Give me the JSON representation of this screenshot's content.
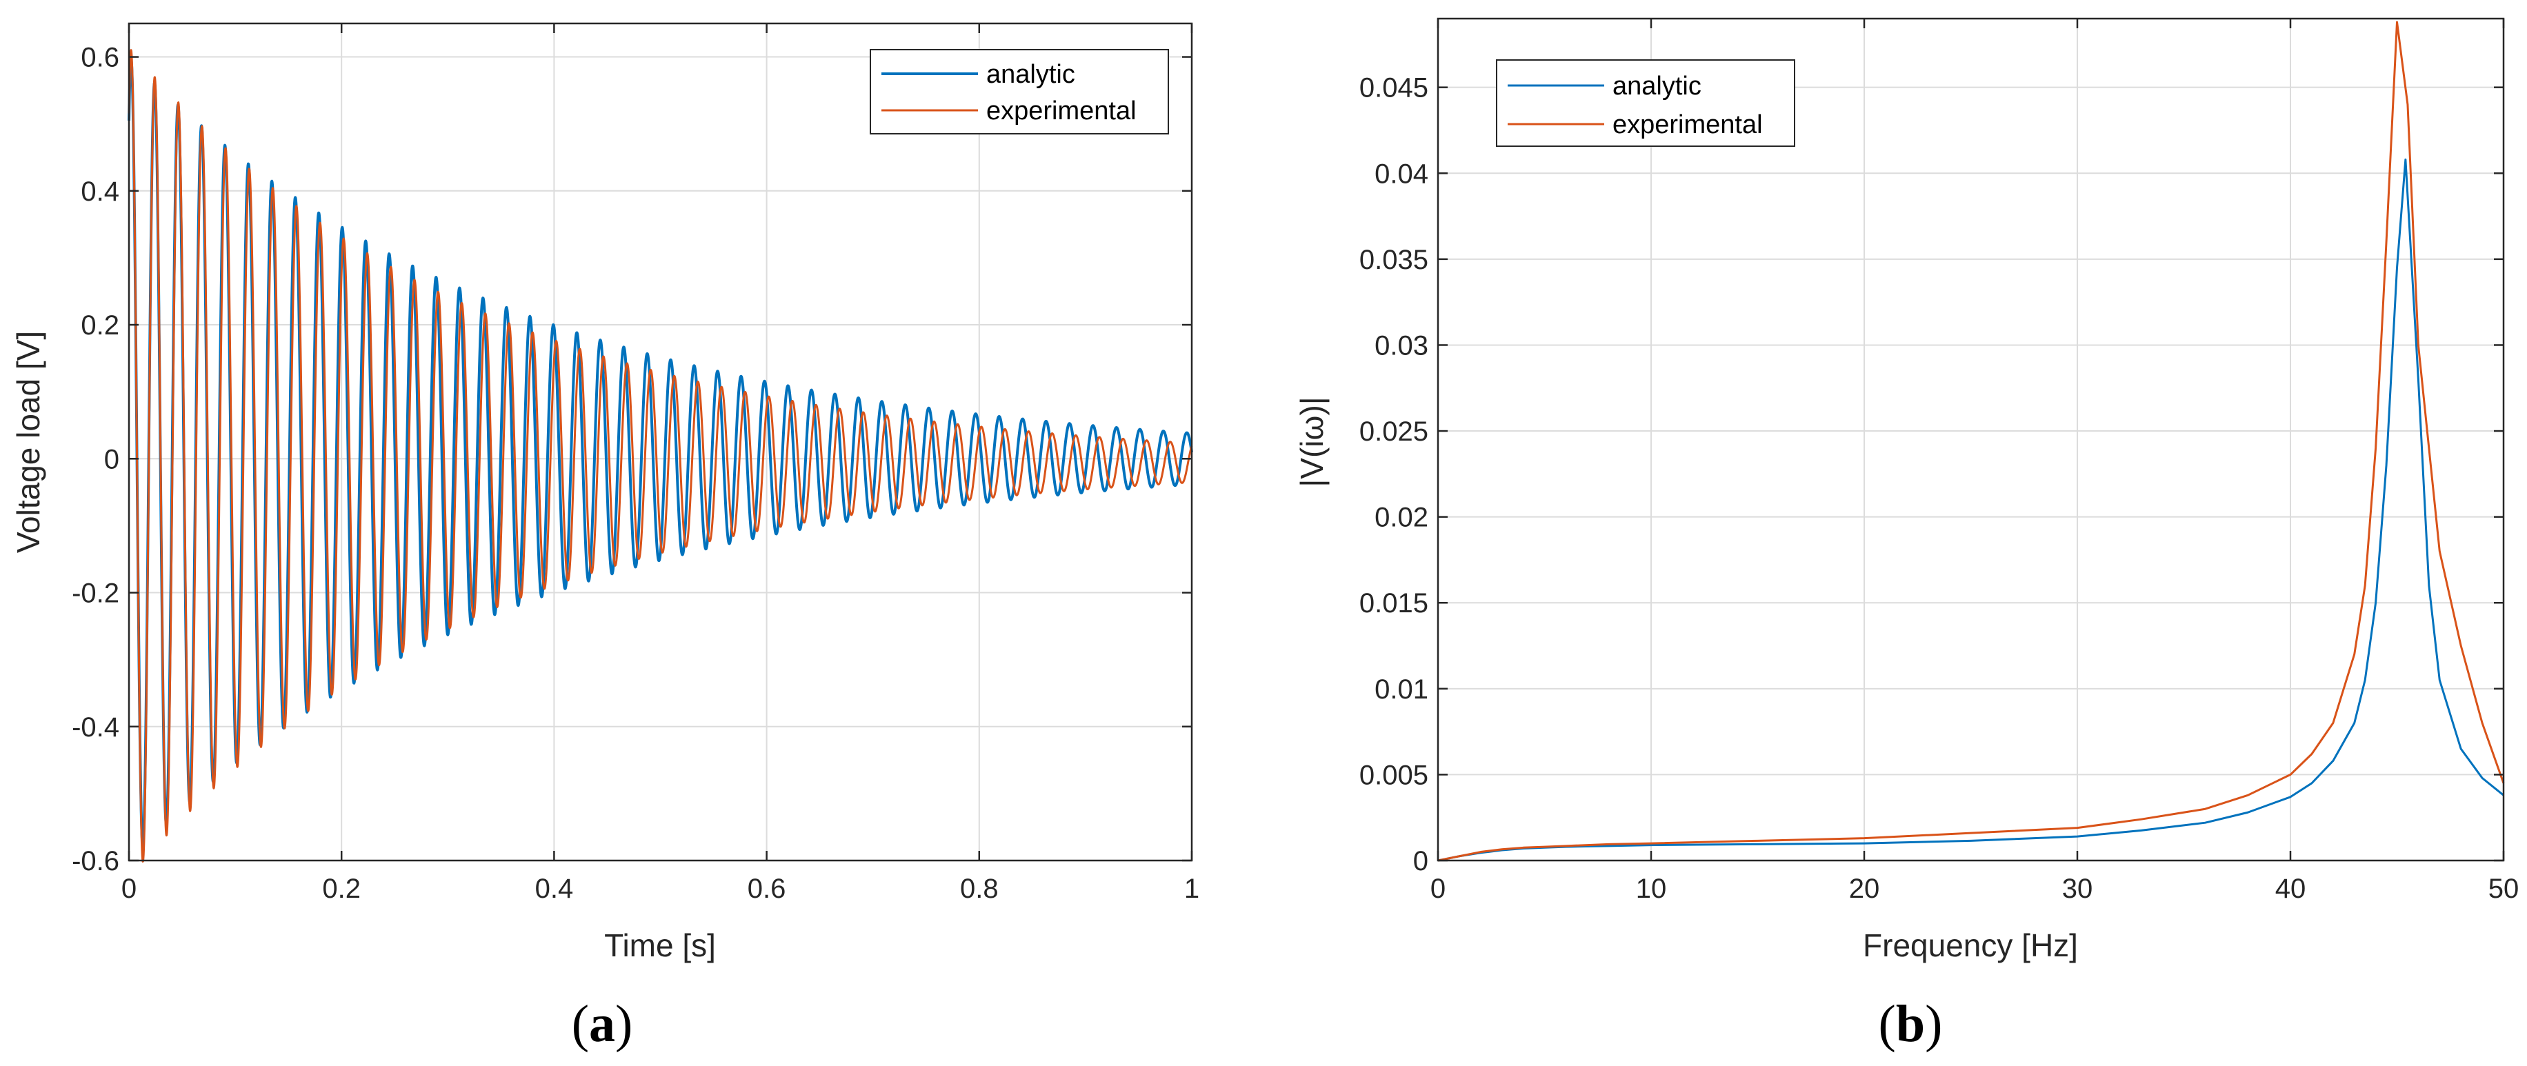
{
  "chart_data": [
    {
      "id": "a",
      "type": "line",
      "caption_letter": "a",
      "xlabel": "Time [s]",
      "ylabel": "Voltage load [V]",
      "xlim": [
        0,
        1
      ],
      "ylim": [
        -0.6,
        0.65
      ],
      "x_ticks": [
        0,
        0.2,
        0.4,
        0.6,
        0.8,
        1
      ],
      "x_tick_labels": [
        "0",
        "0.2",
        "0.4",
        "0.6",
        "0.8",
        "1"
      ],
      "y_ticks": [
        -0.6,
        -0.4,
        -0.2,
        0,
        0.2,
        0.4,
        0.6
      ],
      "y_tick_labels": [
        "-0.6",
        "-0.4",
        "-0.2",
        "0",
        "0.2",
        "0.4",
        "0.6"
      ],
      "grid": true,
      "legend": "top-right",
      "series": [
        {
          "name": "analytic",
          "color": "#0072BD",
          "model": "damped_sine",
          "amplitude": 0.6,
          "frequency_hz": 45.3,
          "decay_per_s": 2.75,
          "offset": 0,
          "phase_rad": 1.0
        },
        {
          "name": "experimental",
          "color": "#D95319",
          "model": "damped_sine",
          "amplitude": 0.62,
          "frequency_hz": 45.0,
          "decay_per_s": 3.05,
          "offset": -0.006,
          "phase_rad": 1.0
        }
      ]
    },
    {
      "id": "b",
      "type": "line",
      "caption_letter": "b",
      "xlabel": "Frequency [Hz]",
      "ylabel": "|V(iω)|",
      "xlim": [
        0,
        50
      ],
      "ylim": [
        0,
        0.049
      ],
      "x_ticks": [
        0,
        10,
        20,
        30,
        40,
        50
      ],
      "x_tick_labels": [
        "0",
        "10",
        "20",
        "30",
        "40",
        "50"
      ],
      "y_ticks": [
        0,
        0.005,
        0.01,
        0.015,
        0.02,
        0.025,
        0.03,
        0.035,
        0.04,
        0.045
      ],
      "y_tick_labels": [
        "0",
        "0.005",
        "0.01",
        "0.015",
        "0.02",
        "0.025",
        "0.03",
        "0.035",
        "0.04",
        "0.045"
      ],
      "grid": true,
      "legend": "top-left",
      "series": [
        {
          "name": "analytic",
          "color": "#0072BD",
          "x": [
            0,
            1,
            2,
            3,
            4,
            5,
            6,
            8,
            10,
            15,
            20,
            25,
            30,
            33,
            36,
            38,
            40,
            41,
            42,
            43,
            43.5,
            44,
            44.5,
            45,
            45.4,
            46,
            46.5,
            47,
            48,
            49,
            50
          ],
          "y": [
            0,
            0.00025,
            0.00045,
            0.0006,
            0.0007,
            0.00075,
            0.0008,
            0.00085,
            0.0009,
            0.00095,
            0.001,
            0.00115,
            0.0014,
            0.00175,
            0.0022,
            0.0028,
            0.0037,
            0.0045,
            0.0058,
            0.008,
            0.0105,
            0.015,
            0.023,
            0.0345,
            0.0408,
            0.028,
            0.016,
            0.0105,
            0.0065,
            0.0048,
            0.0038
          ]
        },
        {
          "name": "experimental",
          "color": "#D95319",
          "x": [
            0,
            1,
            2,
            3,
            4,
            5,
            6,
            8,
            10,
            15,
            20,
            25,
            30,
            33,
            36,
            38,
            40,
            41,
            42,
            43,
            43.5,
            44,
            44.5,
            45,
            45.5,
            46,
            47,
            48,
            49,
            50
          ],
          "y": [
            0,
            0.00025,
            0.0005,
            0.00065,
            0.00075,
            0.0008,
            0.00085,
            0.00095,
            0.001,
            0.00115,
            0.0013,
            0.0016,
            0.0019,
            0.0024,
            0.003,
            0.0038,
            0.005,
            0.0062,
            0.008,
            0.012,
            0.016,
            0.024,
            0.036,
            0.0488,
            0.044,
            0.03,
            0.018,
            0.0125,
            0.008,
            0.0045
          ]
        }
      ]
    }
  ]
}
